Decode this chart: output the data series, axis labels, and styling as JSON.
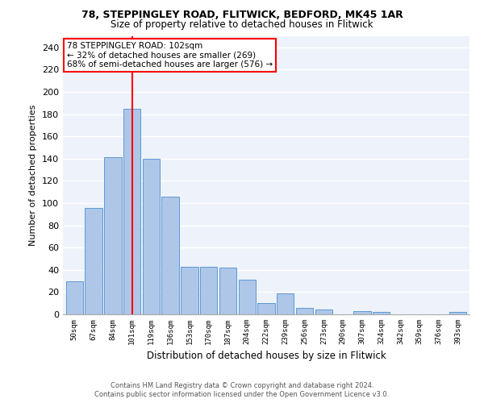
{
  "title1": "78, STEPPINGLEY ROAD, FLITWICK, BEDFORD, MK45 1AR",
  "title2": "Size of property relative to detached houses in Flitwick",
  "xlabel": "Distribution of detached houses by size in Flitwick",
  "ylabel": "Number of detached properties",
  "categories": [
    "50sqm",
    "67sqm",
    "84sqm",
    "101sqm",
    "119sqm",
    "136sqm",
    "153sqm",
    "170sqm",
    "187sqm",
    "204sqm",
    "222sqm",
    "239sqm",
    "256sqm",
    "273sqm",
    "290sqm",
    "307sqm",
    "324sqm",
    "342sqm",
    "359sqm",
    "376sqm",
    "393sqm"
  ],
  "values": [
    30,
    96,
    141,
    185,
    140,
    106,
    43,
    43,
    42,
    31,
    10,
    19,
    6,
    4,
    0,
    3,
    2,
    0,
    0,
    0,
    2
  ],
  "bar_color": "#aec6e8",
  "bar_edge_color": "#5b9bd5",
  "vline_x": 3,
  "vline_color": "red",
  "annotation_line1": "78 STEPPINGLEY ROAD: 102sqm",
  "annotation_line2": "← 32% of detached houses are smaller (269)",
  "annotation_line3": "68% of semi-detached houses are larger (576) →",
  "annotation_box_color": "white",
  "annotation_box_edge": "red",
  "bg_color": "#eef2fa",
  "fig_bg_color": "#ffffff",
  "grid_color": "white",
  "ylim": [
    0,
    250
  ],
  "yticks": [
    0,
    20,
    40,
    60,
    80,
    100,
    120,
    140,
    160,
    180,
    200,
    220,
    240
  ],
  "footer1": "Contains HM Land Registry data © Crown copyright and database right 2024.",
  "footer2": "Contains public sector information licensed under the Open Government Licence v3.0."
}
